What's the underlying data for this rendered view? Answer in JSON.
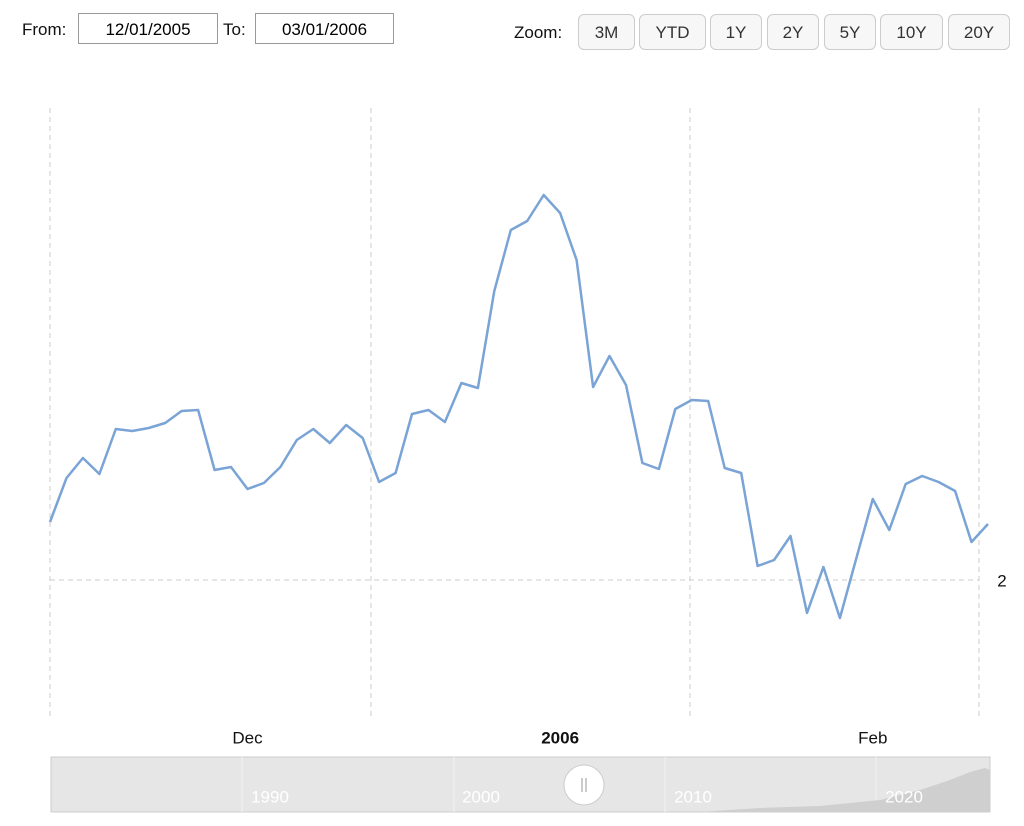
{
  "controls": {
    "from_label": "From:",
    "from_value": "12/01/2005",
    "to_label": "To:",
    "to_value": "03/01/2006",
    "zoom_label": "Zoom:",
    "zoom_buttons": [
      "3M",
      "YTD",
      "1Y",
      "2Y",
      "5Y",
      "10Y",
      "20Y"
    ]
  },
  "chart_data": {
    "type": "line",
    "color": "#7aa3d6",
    "categories": [
      null,
      null,
      null,
      null,
      null,
      null,
      null,
      null,
      null,
      null,
      null,
      null,
      "Dec",
      null,
      null,
      null,
      null,
      null,
      null,
      null,
      null,
      null,
      null,
      null,
      null,
      null,
      null,
      null,
      null,
      null,
      null,
      "2006",
      null,
      null,
      null,
      null,
      null,
      null,
      null,
      null,
      null,
      null,
      null,
      null,
      null,
      null,
      null,
      null,
      null,
      null,
      "Feb",
      null,
      null,
      null,
      null,
      null,
      null,
      null
    ],
    "values": [
      2.058,
      2.102,
      2.122,
      2.106,
      2.151,
      2.149,
      2.152,
      2.157,
      2.169,
      2.17,
      2.11,
      2.113,
      2.091,
      2.097,
      2.113,
      2.14,
      2.151,
      2.137,
      2.155,
      2.142,
      2.098,
      2.107,
      2.166,
      2.17,
      2.158,
      2.197,
      2.192,
      2.289,
      2.35,
      2.359,
      2.385,
      2.367,
      2.32,
      2.193,
      2.224,
      2.195,
      2.117,
      2.111,
      2.171,
      2.18,
      2.179,
      2.112,
      2.107,
      2.014,
      2.02,
      2.044,
      1.967,
      2.013,
      1.962,
      2.022,
      2.081,
      2.05,
      2.096,
      2.104,
      2.098,
      2.089,
      2.038,
      2.056
    ],
    "ylim": [
      1.865,
      2.48
    ],
    "yticks": [
      2
    ],
    "grid": true
  },
  "navigator": {
    "labels": [
      "1990",
      "2000",
      "2010",
      "2020"
    ]
  }
}
